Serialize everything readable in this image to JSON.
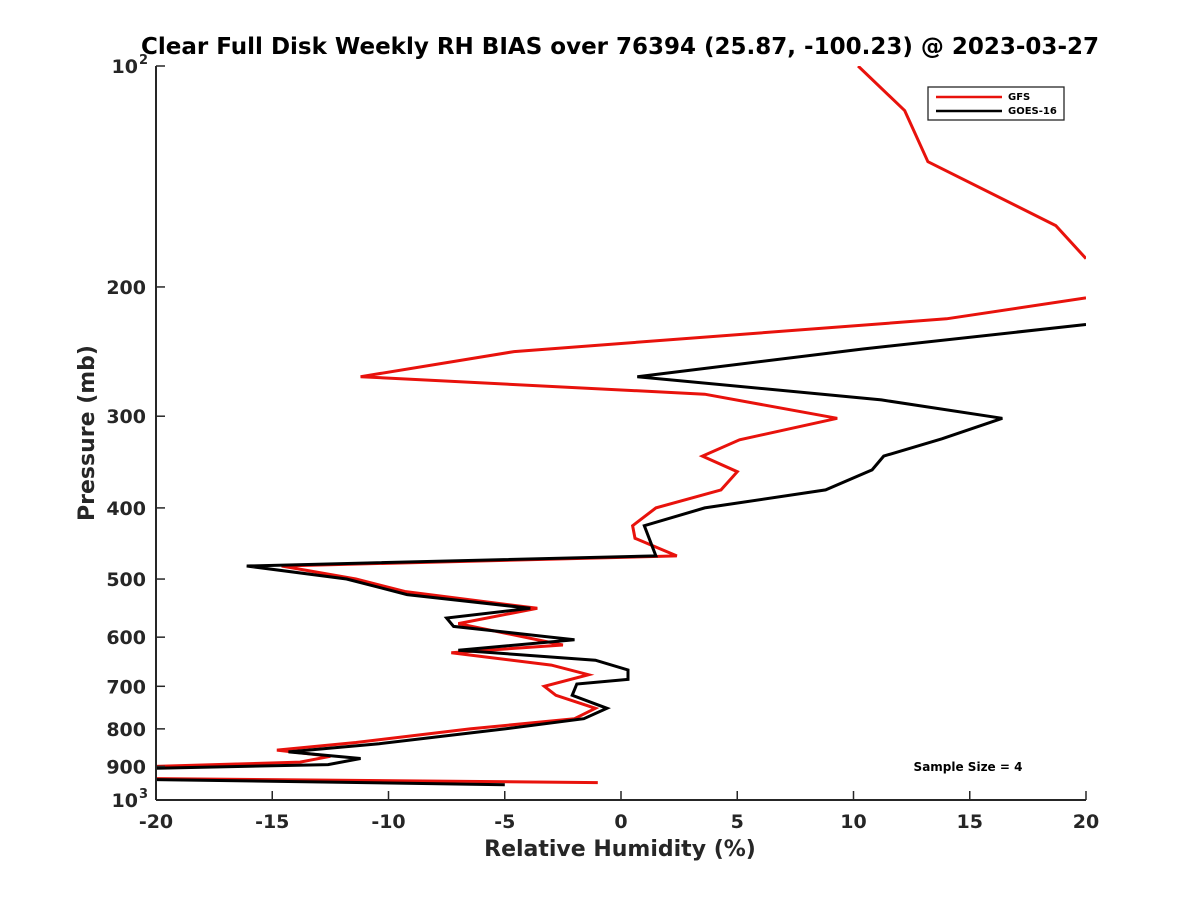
{
  "chart_data": {
    "type": "line",
    "title": "Clear Full Disk Weekly RH BIAS over 76394 (25.87, -100.23) @ 2023-03-27",
    "xlabel": "Relative Humidity (%)",
    "ylabel": "Pressure (mb)",
    "xlim": [
      -20,
      20
    ],
    "ylim": [
      100,
      1000
    ],
    "y_scale": "log",
    "y_reversed": true,
    "grid": false,
    "legend_position": "top-right",
    "annotation": "Sample Size = 4",
    "x_ticks": [
      "-20",
      "-15",
      "-10",
      "-5",
      "0",
      "5",
      "10",
      "15",
      "20"
    ],
    "y_ticks": [
      {
        "value": 100,
        "base": "10",
        "exp": "2"
      },
      {
        "value": 200,
        "label": "200"
      },
      {
        "value": 300,
        "label": "300"
      },
      {
        "value": 400,
        "label": "400"
      },
      {
        "value": 500,
        "label": "500"
      },
      {
        "value": 600,
        "label": "600"
      },
      {
        "value": 700,
        "label": "700"
      },
      {
        "value": 800,
        "label": "800"
      },
      {
        "value": 900,
        "label": "900"
      },
      {
        "value": 1000,
        "base": "10",
        "exp": "3"
      }
    ],
    "series": [
      {
        "name": "GFS",
        "color": "#e8120c",
        "points": [
          [
            10.2,
            100
          ],
          [
            12.2,
            115
          ],
          [
            13.2,
            135
          ],
          [
            18.7,
            165
          ],
          [
            20.0,
            183
          ],
          [
            null,
            null
          ],
          [
            20.0,
            207
          ],
          [
            14.0,
            221
          ],
          [
            -4.6,
            245
          ],
          [
            -11.2,
            265
          ],
          [
            3.6,
            280
          ],
          [
            9.3,
            302
          ],
          [
            5.1,
            323
          ],
          [
            3.5,
            340
          ],
          [
            5.0,
            357
          ],
          [
            4.3,
            378
          ],
          [
            1.5,
            400
          ],
          [
            0.5,
            423
          ],
          [
            0.6,
            440
          ],
          [
            2.4,
            465
          ],
          [
            -14.6,
            480
          ],
          [
            -11.4,
            500
          ],
          [
            -9.3,
            520
          ],
          [
            -3.6,
            548
          ],
          [
            -7.0,
            575
          ],
          [
            -2.5,
            615
          ],
          [
            -7.3,
            630
          ],
          [
            -3.0,
            655
          ],
          [
            -1.4,
            675
          ],
          [
            -3.3,
            700
          ],
          [
            -2.8,
            720
          ],
          [
            -1.1,
            750
          ],
          [
            -2.0,
            775
          ],
          [
            -6.5,
            800
          ],
          [
            -11.4,
            835
          ],
          [
            -14.8,
            855
          ],
          [
            -12.5,
            872
          ],
          [
            -13.8,
            888
          ],
          [
            -20.0,
            900
          ],
          [
            null,
            null
          ],
          [
            -20.0,
            935
          ],
          [
            -1.0,
            947
          ]
        ]
      },
      {
        "name": "GOES-16",
        "color": "#000000",
        "points": [
          [
            20.0,
            225
          ],
          [
            10.4,
            243
          ],
          [
            0.7,
            265
          ],
          [
            11.2,
            285
          ],
          [
            16.4,
            302
          ],
          [
            13.8,
            322
          ],
          [
            11.3,
            340
          ],
          [
            10.8,
            355
          ],
          [
            8.8,
            378
          ],
          [
            3.6,
            400
          ],
          [
            1.0,
            423
          ],
          [
            1.5,
            465
          ],
          [
            -16.1,
            480
          ],
          [
            -11.8,
            500
          ],
          [
            -9.2,
            525
          ],
          [
            -3.9,
            548
          ],
          [
            -7.5,
            565
          ],
          [
            -7.2,
            580
          ],
          [
            -2.0,
            605
          ],
          [
            -7.0,
            625
          ],
          [
            -1.1,
            645
          ],
          [
            0.3,
            665
          ],
          [
            0.3,
            685
          ],
          [
            -1.9,
            695
          ],
          [
            -2.1,
            720
          ],
          [
            -0.6,
            750
          ],
          [
            -1.6,
            775
          ],
          [
            -5.0,
            800
          ],
          [
            -10.4,
            838
          ],
          [
            -14.3,
            860
          ],
          [
            -11.2,
            878
          ],
          [
            -12.6,
            895
          ],
          [
            -20.0,
            905
          ],
          [
            null,
            null
          ],
          [
            -20.0,
            938
          ],
          [
            -5.0,
            953
          ]
        ]
      }
    ]
  }
}
